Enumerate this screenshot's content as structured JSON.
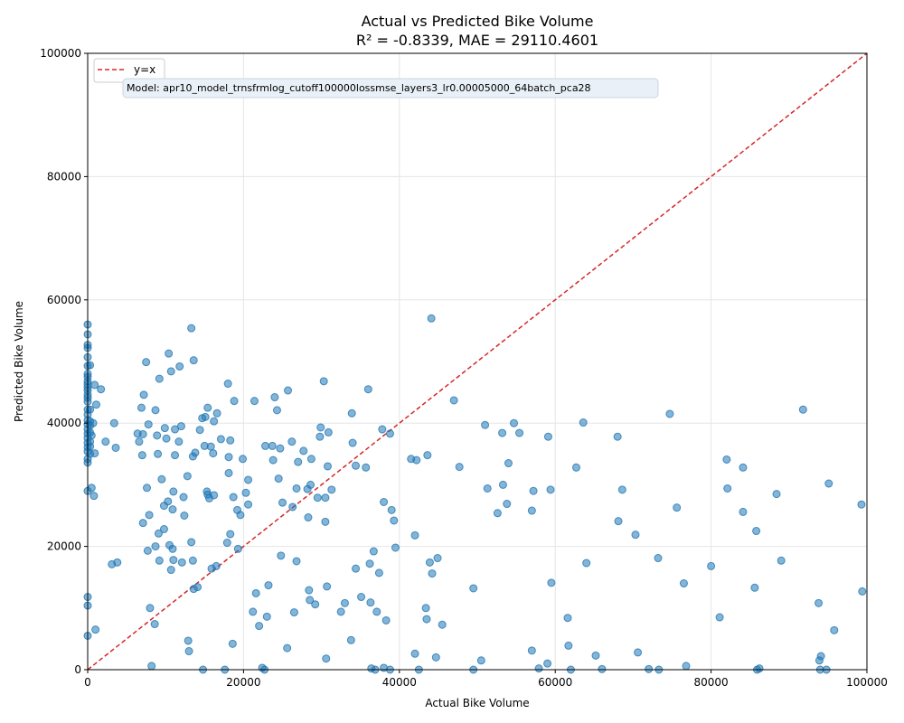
{
  "chart_data": {
    "type": "scatter",
    "title": "Actual vs Predicted Bike Volume",
    "subtitle": "R² = -0.8339, MAE = 29110.4601",
    "xlabel": "Actual Bike Volume",
    "ylabel": "Predicted Bike Volume",
    "xlim": [
      0,
      100000
    ],
    "ylim": [
      0,
      100000
    ],
    "xticks": [
      0,
      20000,
      40000,
      60000,
      80000,
      100000
    ],
    "yticks": [
      0,
      20000,
      40000,
      60000,
      80000,
      100000
    ],
    "grid": true,
    "legend": {
      "placement": "top-left",
      "entries": [
        "y=x"
      ]
    },
    "reference_line": {
      "label": "y=x",
      "color": "#d62728",
      "style": "dashed"
    },
    "annotation": "Model: apr10_model_trnsfrmlog_cutoff100000lossmse_layers3_lr0.00005000_64batch_pca28",
    "point_color": "#1f77b4",
    "points": [
      [
        0,
        56000
      ],
      [
        0,
        54400
      ],
      [
        0,
        52700
      ],
      [
        0,
        52200
      ],
      [
        0,
        50700
      ],
      [
        0,
        49300
      ],
      [
        0,
        48000
      ],
      [
        0,
        47500
      ],
      [
        0,
        46800
      ],
      [
        0,
        46300
      ],
      [
        0,
        45800
      ],
      [
        0,
        45300
      ],
      [
        0,
        44600
      ],
      [
        0,
        44100
      ],
      [
        0,
        43500
      ],
      [
        0,
        42200
      ],
      [
        0,
        41400
      ],
      [
        0,
        40500
      ],
      [
        0,
        39800
      ],
      [
        0,
        39000
      ],
      [
        0,
        38300
      ],
      [
        0,
        37600
      ],
      [
        0,
        36800
      ],
      [
        0,
        36100
      ],
      [
        0,
        35400
      ],
      [
        0,
        34200
      ],
      [
        0,
        33600
      ],
      [
        0,
        29000
      ],
      [
        0,
        11800
      ],
      [
        0,
        10400
      ],
      [
        0,
        5500
      ],
      [
        300,
        49400
      ],
      [
        300,
        42200
      ],
      [
        300,
        40300
      ],
      [
        300,
        39600
      ],
      [
        300,
        38500
      ],
      [
        300,
        37000
      ],
      [
        300,
        36200
      ],
      [
        300,
        35000
      ],
      [
        500,
        29500
      ],
      [
        500,
        38000
      ],
      [
        700,
        40000
      ],
      [
        800,
        28200
      ],
      [
        900,
        46200
      ],
      [
        900,
        35100
      ],
      [
        1000,
        6500
      ],
      [
        1100,
        43000
      ],
      [
        1700,
        45500
      ],
      [
        2300,
        37000
      ],
      [
        3100,
        17100
      ],
      [
        3400,
        40000
      ],
      [
        3600,
        36000
      ],
      [
        3800,
        17400
      ],
      [
        6400,
        38300
      ],
      [
        6600,
        37000
      ],
      [
        6900,
        42500
      ],
      [
        7000,
        34800
      ],
      [
        7100,
        38200
      ],
      [
        7100,
        23800
      ],
      [
        7200,
        44600
      ],
      [
        7500,
        49900
      ],
      [
        7600,
        29500
      ],
      [
        7700,
        19300
      ],
      [
        7800,
        39800
      ],
      [
        7900,
        25100
      ],
      [
        8000,
        10000
      ],
      [
        8200,
        600
      ],
      [
        8600,
        7400
      ],
      [
        8700,
        42100
      ],
      [
        8700,
        20000
      ],
      [
        8900,
        38000
      ],
      [
        9000,
        35000
      ],
      [
        9100,
        22100
      ],
      [
        9200,
        47200
      ],
      [
        9200,
        17700
      ],
      [
        9500,
        30900
      ],
      [
        9800,
        26600
      ],
      [
        9800,
        22800
      ],
      [
        9900,
        39200
      ],
      [
        10100,
        37500
      ],
      [
        10300,
        27300
      ],
      [
        10400,
        51300
      ],
      [
        10500,
        20200
      ],
      [
        10700,
        16200
      ],
      [
        10700,
        48400
      ],
      [
        10900,
        19600
      ],
      [
        10900,
        26000
      ],
      [
        11000,
        17800
      ],
      [
        11000,
        28900
      ],
      [
        11200,
        39000
      ],
      [
        11200,
        34800
      ],
      [
        11700,
        37000
      ],
      [
        11800,
        49200
      ],
      [
        12000,
        39500
      ],
      [
        12100,
        17400
      ],
      [
        12300,
        28000
      ],
      [
        12400,
        25000
      ],
      [
        12800,
        31400
      ],
      [
        12900,
        4700
      ],
      [
        13000,
        3000
      ],
      [
        13300,
        55400
      ],
      [
        13300,
        20700
      ],
      [
        13500,
        34600
      ],
      [
        13500,
        17700
      ],
      [
        13600,
        13100
      ],
      [
        13600,
        50200
      ],
      [
        13800,
        35200
      ],
      [
        14100,
        13400
      ],
      [
        14400,
        38900
      ],
      [
        14700,
        40800
      ],
      [
        14800,
        0
      ],
      [
        15000,
        36300
      ],
      [
        15100,
        41000
      ],
      [
        15300,
        28900
      ],
      [
        15400,
        42500
      ],
      [
        15400,
        28400
      ],
      [
        15600,
        27800
      ],
      [
        15800,
        36200
      ],
      [
        15900,
        16400
      ],
      [
        16100,
        35100
      ],
      [
        16200,
        28300
      ],
      [
        16200,
        40300
      ],
      [
        16500,
        16800
      ],
      [
        16600,
        41600
      ],
      [
        17100,
        37400
      ],
      [
        17600,
        0
      ],
      [
        17900,
        20600
      ],
      [
        18000,
        46400
      ],
      [
        18100,
        31900
      ],
      [
        18100,
        34500
      ],
      [
        18300,
        22000
      ],
      [
        18300,
        37200
      ],
      [
        18600,
        4200
      ],
      [
        18700,
        28000
      ],
      [
        18800,
        43600
      ],
      [
        19200,
        25900
      ],
      [
        19300,
        19600
      ],
      [
        19600,
        25100
      ],
      [
        19900,
        34200
      ],
      [
        20300,
        28700
      ],
      [
        20600,
        30800
      ],
      [
        20600,
        26800
      ],
      [
        21200,
        9400
      ],
      [
        21400,
        43600
      ],
      [
        21600,
        12400
      ],
      [
        22000,
        7100
      ],
      [
        22400,
        300
      ],
      [
        22700,
        0
      ],
      [
        22800,
        36300
      ],
      [
        23000,
        8600
      ],
      [
        23200,
        13700
      ],
      [
        23700,
        36300
      ],
      [
        23800,
        34000
      ],
      [
        24000,
        44200
      ],
      [
        24300,
        42100
      ],
      [
        24500,
        31000
      ],
      [
        24700,
        35900
      ],
      [
        24800,
        18500
      ],
      [
        25000,
        27100
      ],
      [
        25600,
        3500
      ],
      [
        25700,
        45300
      ],
      [
        26200,
        37000
      ],
      [
        26300,
        26400
      ],
      [
        26500,
        9300
      ],
      [
        26800,
        29400
      ],
      [
        26800,
        17600
      ],
      [
        27000,
        33700
      ],
      [
        27700,
        35500
      ],
      [
        28200,
        29300
      ],
      [
        28300,
        24700
      ],
      [
        28400,
        12900
      ],
      [
        28500,
        11300
      ],
      [
        28700,
        34200
      ],
      [
        28600,
        30000
      ],
      [
        29200,
        10600
      ],
      [
        29500,
        27900
      ],
      [
        29800,
        37800
      ],
      [
        29900,
        39300
      ],
      [
        30300,
        46800
      ],
      [
        30500,
        24000
      ],
      [
        30500,
        27900
      ],
      [
        30600,
        1800
      ],
      [
        30700,
        13500
      ],
      [
        30800,
        33000
      ],
      [
        30900,
        38500
      ],
      [
        31300,
        29200
      ],
      [
        32500,
        9400
      ],
      [
        33000,
        10800
      ],
      [
        33800,
        4800
      ],
      [
        33900,
        41600
      ],
      [
        34000,
        36800
      ],
      [
        34400,
        33100
      ],
      [
        34400,
        16400
      ],
      [
        35100,
        11800
      ],
      [
        35700,
        32800
      ],
      [
        36000,
        45500
      ],
      [
        36200,
        17200
      ],
      [
        36300,
        10900
      ],
      [
        36400,
        200
      ],
      [
        36700,
        19200
      ],
      [
        36900,
        0
      ],
      [
        37100,
        9400
      ],
      [
        37400,
        15700
      ],
      [
        37800,
        39000
      ],
      [
        38000,
        27200
      ],
      [
        38000,
        300
      ],
      [
        38300,
        8000
      ],
      [
        38800,
        38300
      ],
      [
        38800,
        0
      ],
      [
        39000,
        25900
      ],
      [
        39300,
        24200
      ],
      [
        39500,
        19800
      ],
      [
        41500,
        34200
      ],
      [
        42000,
        21800
      ],
      [
        42000,
        2600
      ],
      [
        42200,
        34000
      ],
      [
        42500,
        0
      ],
      [
        43400,
        10000
      ],
      [
        43500,
        8200
      ],
      [
        43600,
        34800
      ],
      [
        43900,
        17400
      ],
      [
        44100,
        57000
      ],
      [
        44200,
        15600
      ],
      [
        44700,
        2000
      ],
      [
        44900,
        18100
      ],
      [
        45500,
        7300
      ],
      [
        47000,
        43700
      ],
      [
        47700,
        32900
      ],
      [
        49500,
        13200
      ],
      [
        49500,
        0
      ],
      [
        50500,
        1500
      ],
      [
        51000,
        39700
      ],
      [
        51300,
        29400
      ],
      [
        52600,
        25400
      ],
      [
        53200,
        38400
      ],
      [
        53300,
        30000
      ],
      [
        53800,
        26900
      ],
      [
        54000,
        33500
      ],
      [
        54700,
        40000
      ],
      [
        55400,
        38400
      ],
      [
        57000,
        25800
      ],
      [
        57200,
        29000
      ],
      [
        57000,
        3100
      ],
      [
        57900,
        200
      ],
      [
        59000,
        1000
      ],
      [
        59100,
        37800
      ],
      [
        59400,
        29200
      ],
      [
        59500,
        14100
      ],
      [
        61600,
        8400
      ],
      [
        61700,
        3900
      ],
      [
        62000,
        0
      ],
      [
        62700,
        32800
      ],
      [
        63600,
        40100
      ],
      [
        64000,
        17300
      ],
      [
        65200,
        2300
      ],
      [
        66000,
        100
      ],
      [
        68000,
        37800
      ],
      [
        68100,
        24100
      ],
      [
        68600,
        29200
      ],
      [
        70300,
        21900
      ],
      [
        70600,
        2800
      ],
      [
        72000,
        100
      ],
      [
        73200,
        18100
      ],
      [
        73300,
        0
      ],
      [
        74700,
        41500
      ],
      [
        75600,
        26300
      ],
      [
        76500,
        14000
      ],
      [
        76800,
        600
      ],
      [
        80000,
        16800
      ],
      [
        81100,
        8500
      ],
      [
        82000,
        34100
      ],
      [
        82100,
        29400
      ],
      [
        84100,
        25600
      ],
      [
        84100,
        32800
      ],
      [
        85600,
        13300
      ],
      [
        85800,
        22500
      ],
      [
        85900,
        0
      ],
      [
        86200,
        200
      ],
      [
        88400,
        28500
      ],
      [
        89000,
        17700
      ],
      [
        91800,
        42200
      ],
      [
        93800,
        10800
      ],
      [
        93900,
        1500
      ],
      [
        94000,
        0
      ],
      [
        94100,
        2200
      ],
      [
        94800,
        0
      ],
      [
        95100,
        30200
      ],
      [
        95800,
        6400
      ],
      [
        99300,
        26800
      ],
      [
        99400,
        12700
      ]
    ]
  }
}
